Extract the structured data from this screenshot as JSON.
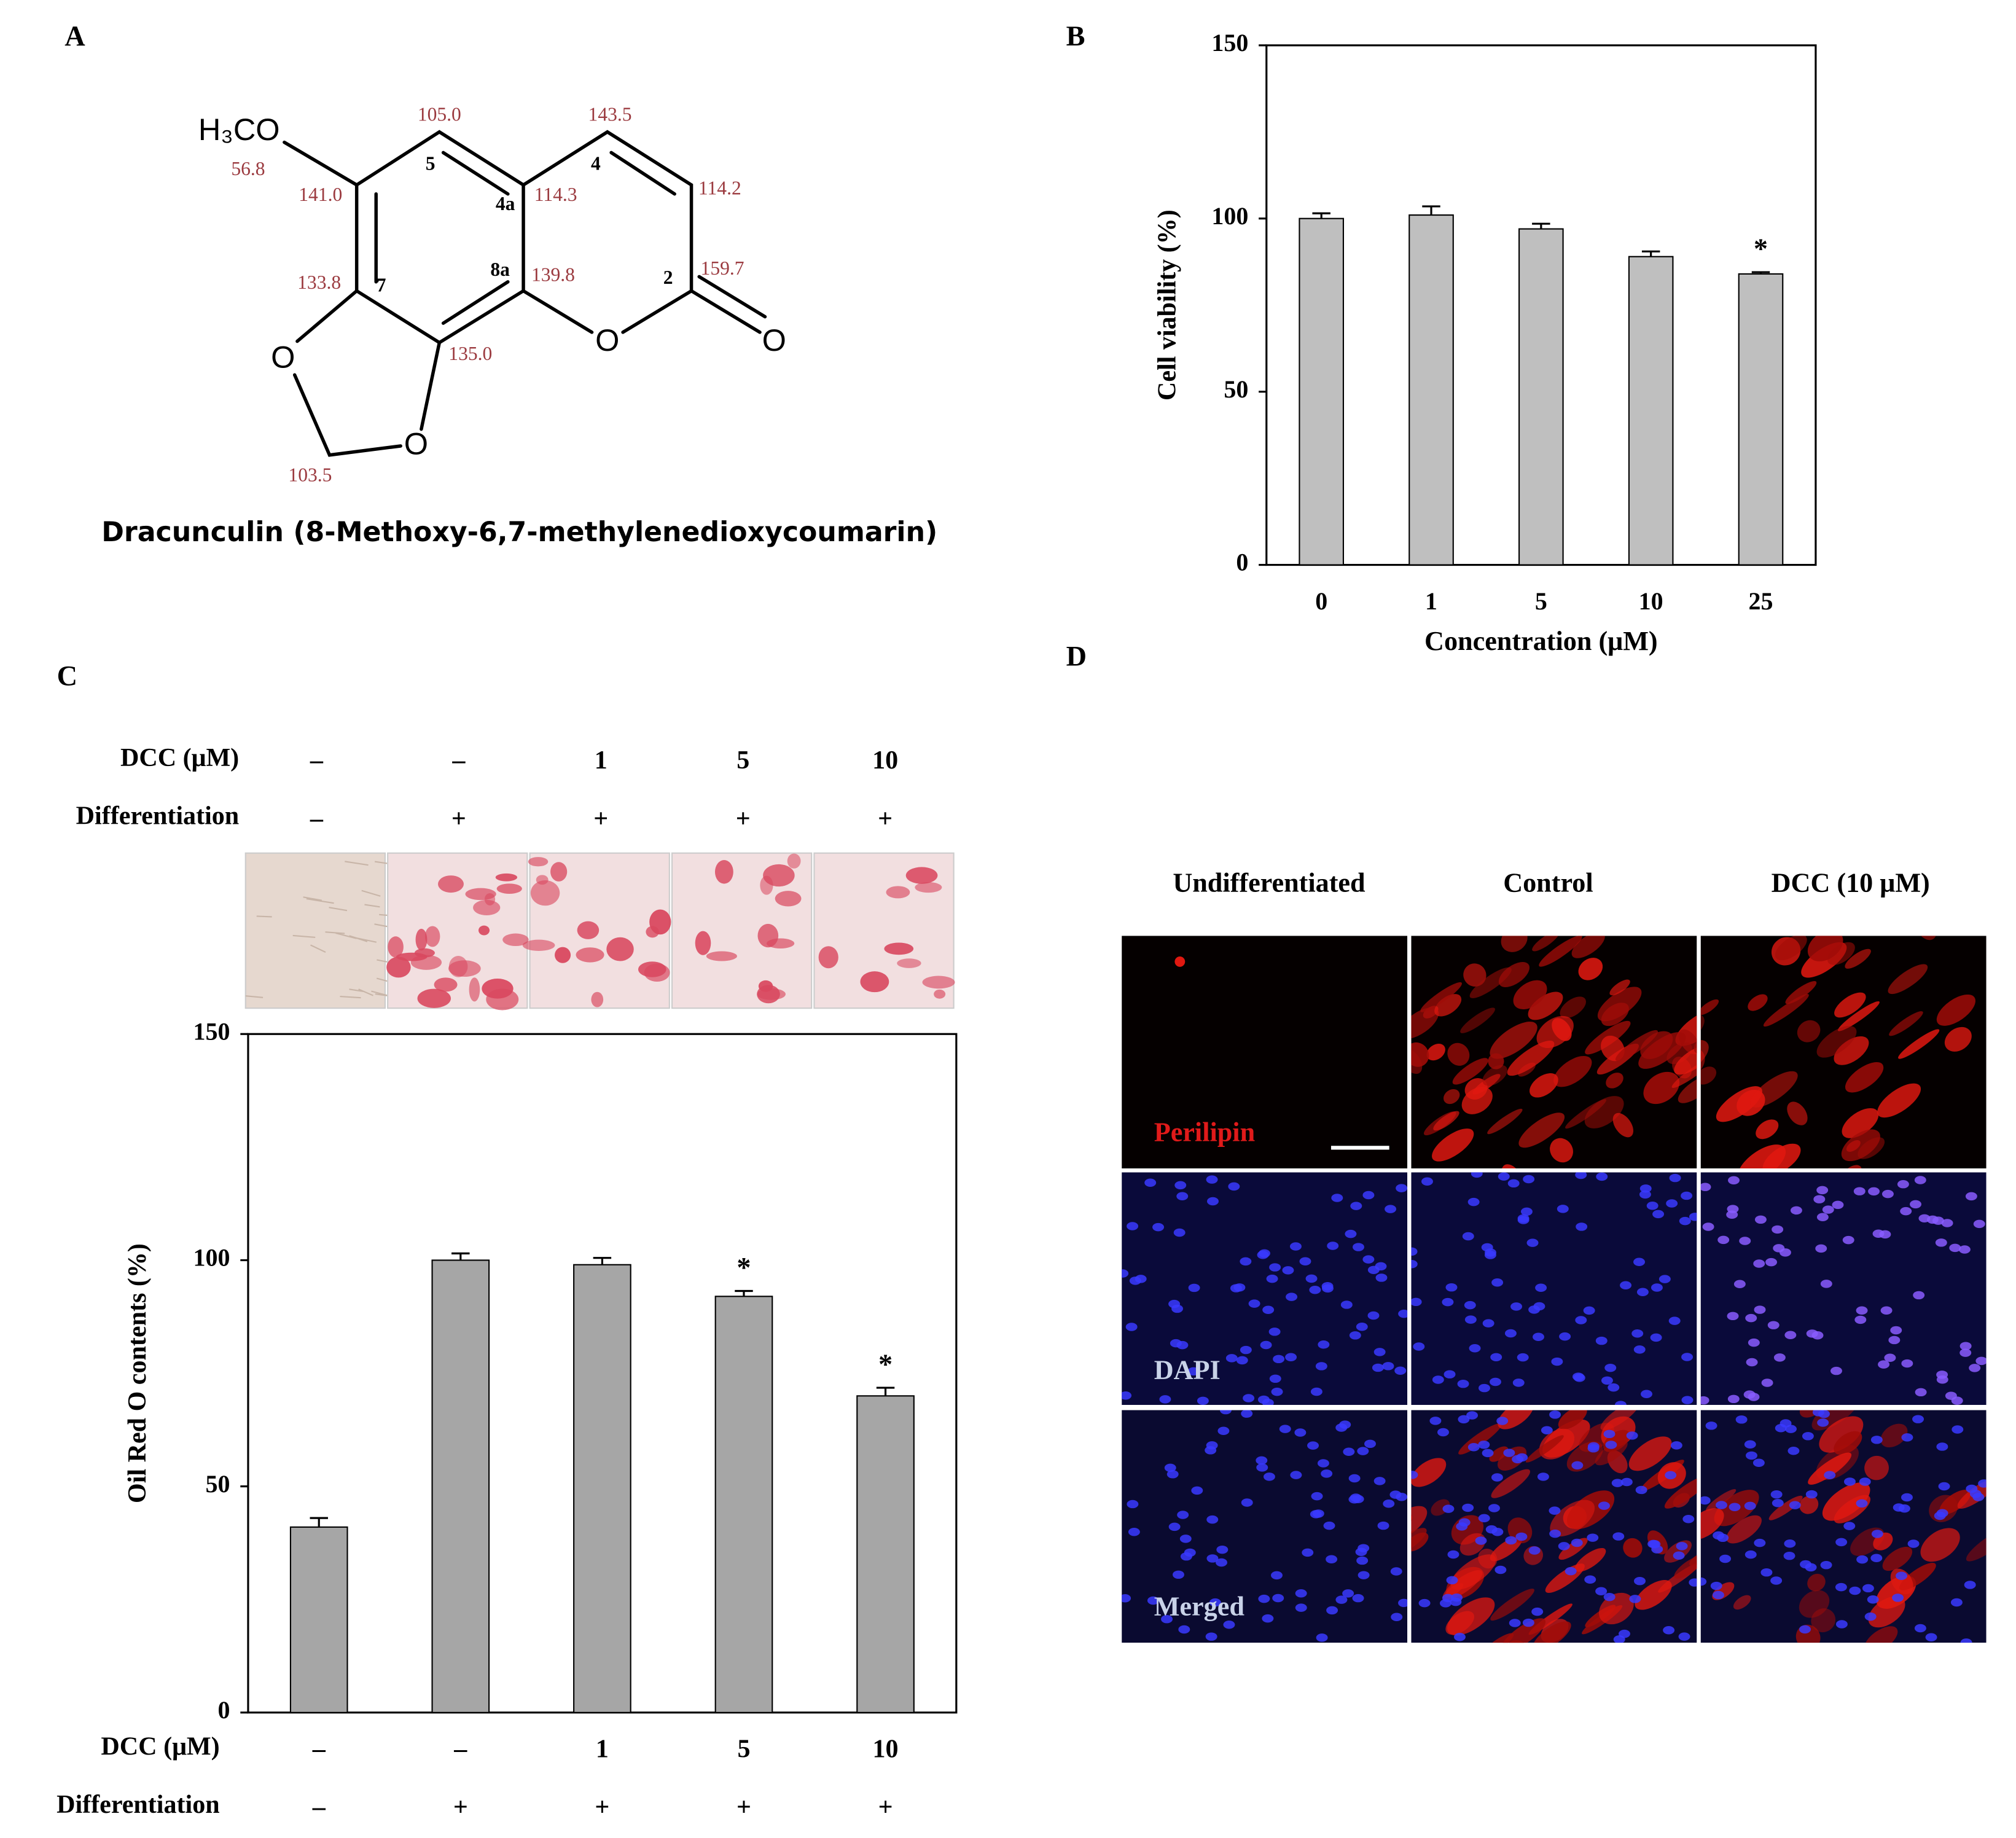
{
  "panel_labels": [
    "A",
    "B",
    "C",
    "D"
  ],
  "structure": {
    "name": "Dracunculin (8-Methoxy-6,7-methylenedioxycoumarin)",
    "methoxy": "H₃CO",
    "oxygens": [
      "O",
      "O",
      "O",
      "O"
    ],
    "shifts": [
      "105.0",
      "143.5",
      "114.2",
      "141.0",
      "114.3",
      "159.7",
      "133.8",
      "139.8",
      "135.0",
      "56.8",
      "103.5"
    ],
    "positions": [
      "5",
      "4",
      "4a",
      "8a",
      "2",
      "7"
    ]
  },
  "chart_data": [
    {
      "type": "bar",
      "y_label": "Cell viability (%)",
      "x_label": "Concentration (μM)",
      "categories": [
        "0",
        "1",
        "5",
        "10",
        "25"
      ],
      "values": [
        100,
        101,
        97,
        89,
        84
      ],
      "errors": [
        1.5,
        2.5,
        1.5,
        1.5,
        0.5
      ],
      "markers": [
        null,
        null,
        null,
        null,
        "*"
      ],
      "color": "#bfbfbf",
      "ylim": [
        0,
        150
      ],
      "yticks": [
        0,
        50,
        100,
        150
      ]
    },
    {
      "type": "bar",
      "y_label": "Oil  Red O contents (%)",
      "categories": [
        null,
        null,
        null,
        null,
        null
      ],
      "condition_rows": [
        {
          "label": "DCC (μM)",
          "values": [
            "–",
            "–",
            "1",
            "5",
            "10"
          ]
        },
        {
          "label": "Differentiation",
          "values": [
            "–",
            "+",
            "+",
            "+",
            "+"
          ]
        }
      ],
      "values": [
        41,
        100,
        99,
        92,
        70
      ],
      "errors": [
        2,
        1.5,
        1.5,
        1.2,
        1.8
      ],
      "markers": [
        null,
        null,
        null,
        "*",
        "*"
      ],
      "color": "#a6a6a6",
      "ylim": [
        0,
        150
      ],
      "yticks": [
        0,
        50,
        100,
        150
      ]
    }
  ],
  "micrographs": {
    "columns": [
      "Undifferentiated",
      "Control",
      "DCC (10 μM)"
    ],
    "rows": [
      "Perilipin",
      "DAPI",
      "Merged"
    ]
  }
}
